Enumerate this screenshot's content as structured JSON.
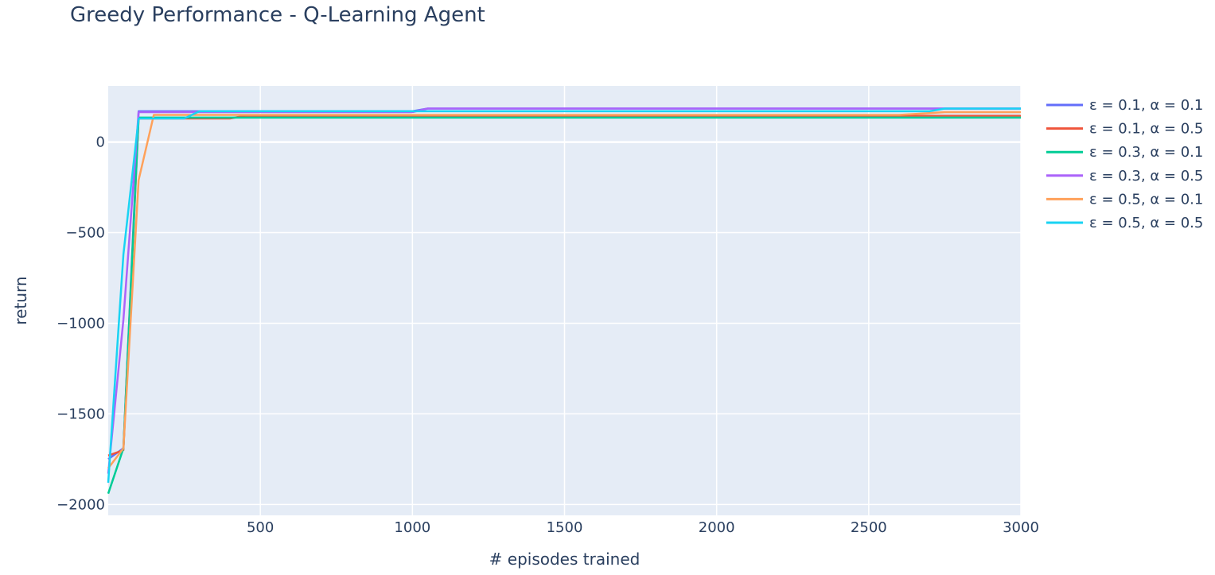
{
  "chart_data": {
    "type": "line",
    "title": "Greedy Performance - Q-Learning Agent",
    "xlabel": "# episodes trained",
    "ylabel": "return",
    "xlim": [
      0,
      3000
    ],
    "ylim": [
      -2060,
      310
    ],
    "xticks": [
      500,
      1000,
      1500,
      2000,
      2500,
      3000
    ],
    "yticks": [
      -2000,
      -1500,
      -1000,
      -500,
      0
    ],
    "ytick_labels": [
      "−2000",
      "−1500",
      "−1000",
      "−500",
      "0"
    ],
    "grid": true,
    "plot_bgcolor": "#e5ecf6",
    "legend_position": "right",
    "series": [
      {
        "name": "ε = 0.1, α = 0.1",
        "color": "#636efa",
        "x": [
          0,
          50,
          100,
          150,
          200,
          250,
          300,
          350,
          400,
          450,
          500,
          1000,
          1050,
          1500,
          2000,
          2500,
          2600,
          2700,
          3000
        ],
        "y": [
          -1750,
          -1690,
          170,
          170,
          170,
          170,
          170,
          170,
          170,
          170,
          170,
          170,
          185,
          185,
          185,
          185,
          185,
          185,
          185
        ]
      },
      {
        "name": "ε = 0.1, α = 0.5",
        "color": "#ef553b",
        "x": [
          0,
          50,
          100,
          150,
          200,
          250,
          300,
          350,
          400,
          450,
          500,
          1000,
          1500,
          2000,
          2500,
          3000
        ],
        "y": [
          -1730,
          -1700,
          130,
          130,
          130,
          130,
          130,
          130,
          130,
          145,
          145,
          145,
          145,
          145,
          145,
          145
        ]
      },
      {
        "name": "ε = 0.3, α = 0.1",
        "color": "#00cc96",
        "x": [
          0,
          50,
          100,
          150,
          200,
          500,
          1000,
          1500,
          2000,
          2500,
          3000
        ],
        "y": [
          -1940,
          -1690,
          135,
          135,
          135,
          135,
          135,
          135,
          135,
          135,
          135
        ]
      },
      {
        "name": "ε = 0.3, α = 0.5",
        "color": "#ab63fa",
        "x": [
          0,
          50,
          100,
          150,
          500,
          1000,
          1050,
          1500,
          2000,
          2500,
          3000
        ],
        "y": [
          -1830,
          -980,
          165,
          165,
          165,
          165,
          185,
          185,
          185,
          185,
          185
        ]
      },
      {
        "name": "ε = 0.5, α = 0.1",
        "color": "#ffa15a",
        "x": [
          0,
          50,
          100,
          150,
          200,
          500,
          1000,
          1500,
          2000,
          2500,
          2600,
          2750,
          3000
        ],
        "y": [
          -1800,
          -1690,
          -210,
          150,
          150,
          150,
          150,
          150,
          150,
          150,
          150,
          165,
          165
        ]
      },
      {
        "name": "ε = 0.5, α = 0.5",
        "color": "#19d3f3",
        "x": [
          0,
          50,
          100,
          150,
          250,
          300,
          500,
          1000,
          1500,
          2000,
          2500,
          2700,
          2750,
          3000
        ],
        "y": [
          -1880,
          -620,
          130,
          130,
          130,
          170,
          170,
          170,
          170,
          170,
          170,
          170,
          185,
          185
        ]
      }
    ]
  }
}
